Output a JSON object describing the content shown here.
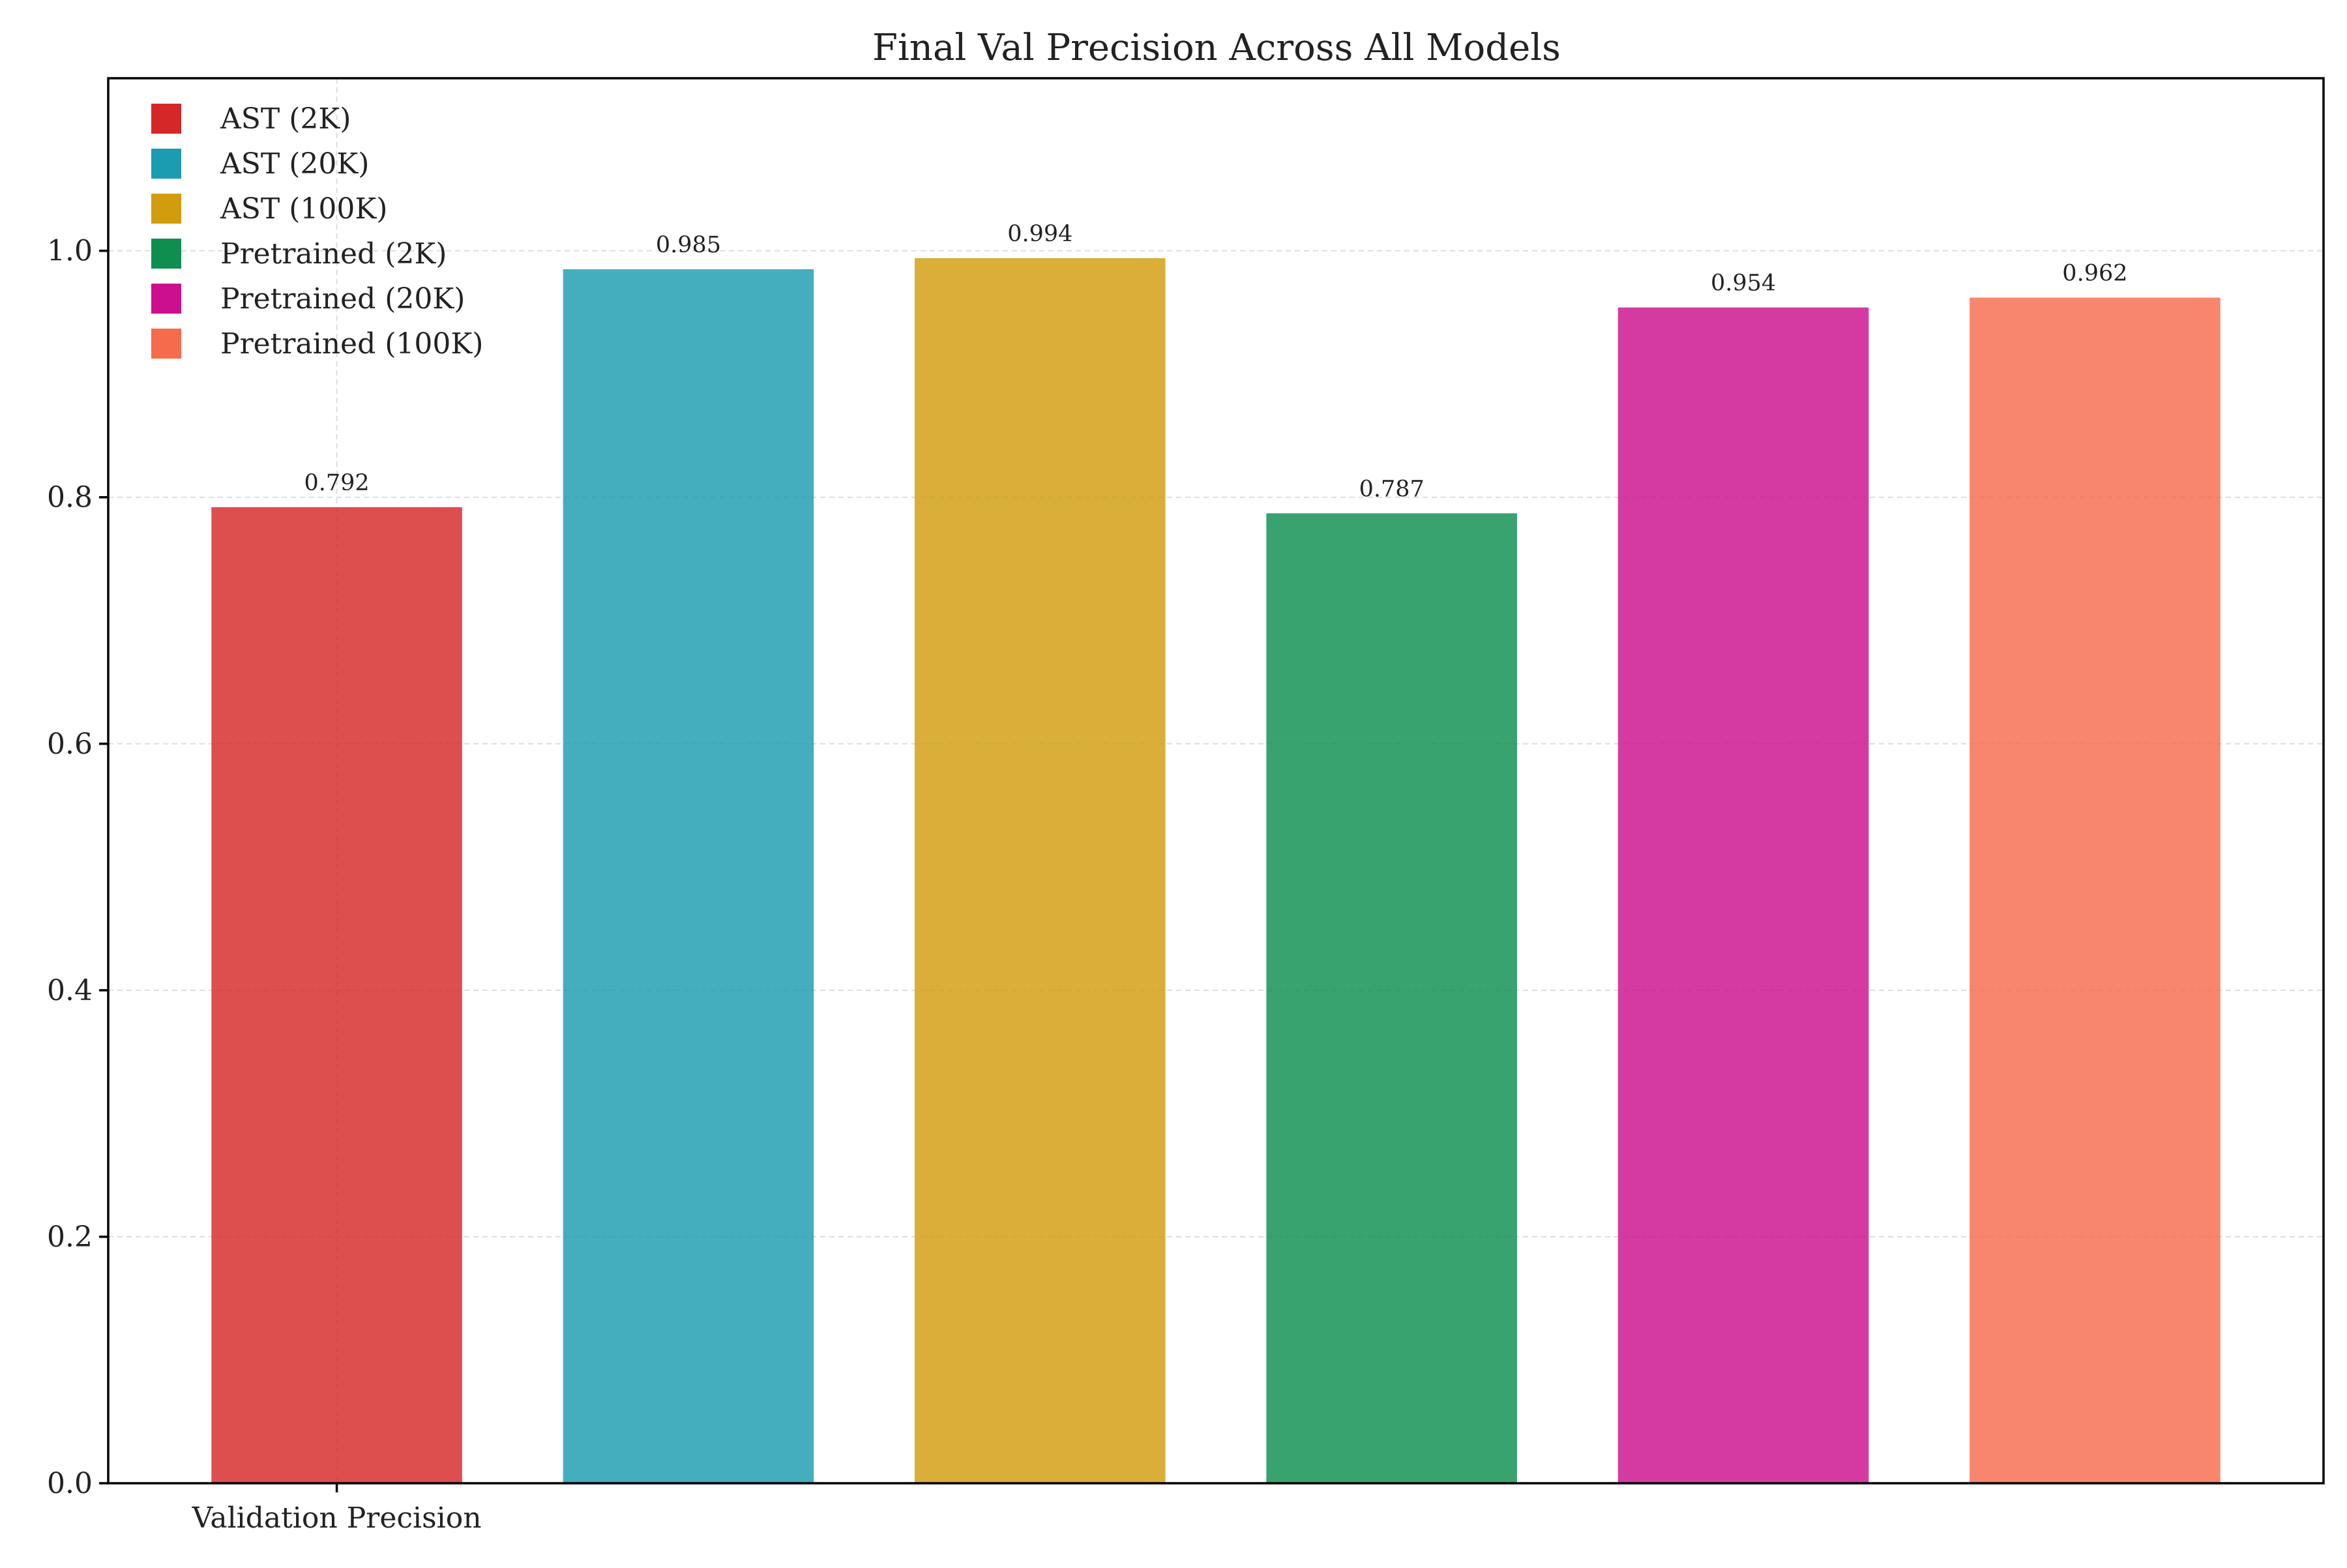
{
  "chart_data": {
    "type": "bar",
    "title": "Final Val Precision Across All Models",
    "xlabel": "",
    "ylabel": "",
    "categories": [
      "Validation Precision"
    ],
    "ylim": [
      0,
      1.14
    ],
    "yticks": [
      0.0,
      0.2,
      0.4,
      0.6,
      0.8,
      1.0
    ],
    "ytick_labels": [
      "0.0",
      "0.2",
      "0.4",
      "0.6",
      "0.8",
      "1.0"
    ],
    "grid": true,
    "legend_position": "top-left",
    "series": [
      {
        "name": "AST (2K)",
        "values": [
          0.792
        ],
        "label": "0.792",
        "color": "#d62728"
      },
      {
        "name": "AST (20K)",
        "values": [
          0.985
        ],
        "label": "0.985",
        "color": "#1b9cb0"
      },
      {
        "name": "AST (100K)",
        "values": [
          0.994
        ],
        "label": "0.994",
        "color": "#d19d0f"
      },
      {
        "name": "Pretrained (2K)",
        "values": [
          0.787
        ],
        "label": "0.787",
        "color": "#0e8f4f"
      },
      {
        "name": "Pretrained (20K)",
        "values": [
          0.954
        ],
        "label": "0.954",
        "color": "#cc0f8f"
      },
      {
        "name": "Pretrained (100K)",
        "values": [
          0.962
        ],
        "label": "0.962",
        "color": "#f56b4c"
      }
    ]
  }
}
